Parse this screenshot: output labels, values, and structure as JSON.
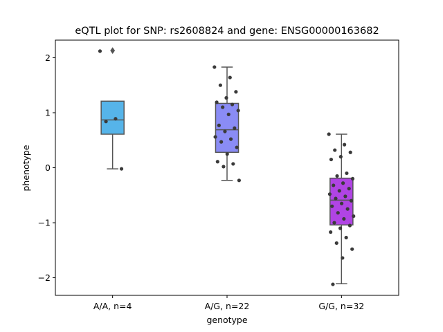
{
  "chart_data": {
    "type": "box",
    "title": "eQTL plot for SNP: rs2608824 and gene: ENSG00000163682",
    "xlabel": "genotype",
    "ylabel": "phenotype",
    "ylim": [
      -2.32,
      2.32
    ],
    "yticks": [
      -2,
      -1,
      0,
      1,
      2
    ],
    "ytick_labels": [
      "−2",
      "−1",
      "0",
      "1",
      "2"
    ],
    "grid": false,
    "categories": [
      "A/A, n=4",
      "A/G, n=22",
      "G/G, n=32"
    ],
    "colors": [
      "#56b4e9",
      "#8a8cf5",
      "#b044e4"
    ],
    "edge_color": "#555555",
    "point_color": "#3a3a3a",
    "boxes": [
      {
        "category": "A/A, n=4",
        "whisker_low": -0.02,
        "q1": 0.61,
        "median": 0.87,
        "q3": 1.21,
        "whisker_high": 1.21,
        "outliers": [
          2.13
        ]
      },
      {
        "category": "A/G, n=22",
        "whisker_low": -0.23,
        "q1": 0.28,
        "median": 0.69,
        "q3": 1.17,
        "whisker_high": 1.83,
        "outliers": []
      },
      {
        "category": "G/G, n=32",
        "whisker_low": -2.11,
        "q1": -1.04,
        "median": -0.59,
        "q3": -0.19,
        "whisker_high": 0.61,
        "outliers": []
      }
    ],
    "points": [
      {
        "category": "A/A, n=4",
        "values": [
          2.12,
          0.89,
          0.84,
          -0.02
        ]
      },
      {
        "category": "A/G, n=22",
        "values": [
          1.83,
          1.64,
          1.5,
          1.38,
          1.27,
          1.19,
          1.15,
          1.1,
          1.04,
          0.97,
          0.77,
          0.72,
          0.66,
          0.56,
          0.52,
          0.47,
          0.37,
          0.25,
          0.11,
          0.07,
          0.02,
          -0.23
        ]
      },
      {
        "category": "G/G, n=32",
        "values": [
          0.61,
          0.42,
          0.32,
          0.28,
          0.2,
          0.15,
          -0.1,
          -0.15,
          -0.2,
          -0.28,
          -0.32,
          -0.38,
          -0.42,
          -0.48,
          -0.52,
          -0.56,
          -0.6,
          -0.65,
          -0.7,
          -0.75,
          -0.82,
          -0.88,
          -0.93,
          -1.0,
          -1.05,
          -1.1,
          -1.17,
          -1.27,
          -1.37,
          -1.48,
          -1.64,
          -2.12
        ]
      }
    ]
  }
}
